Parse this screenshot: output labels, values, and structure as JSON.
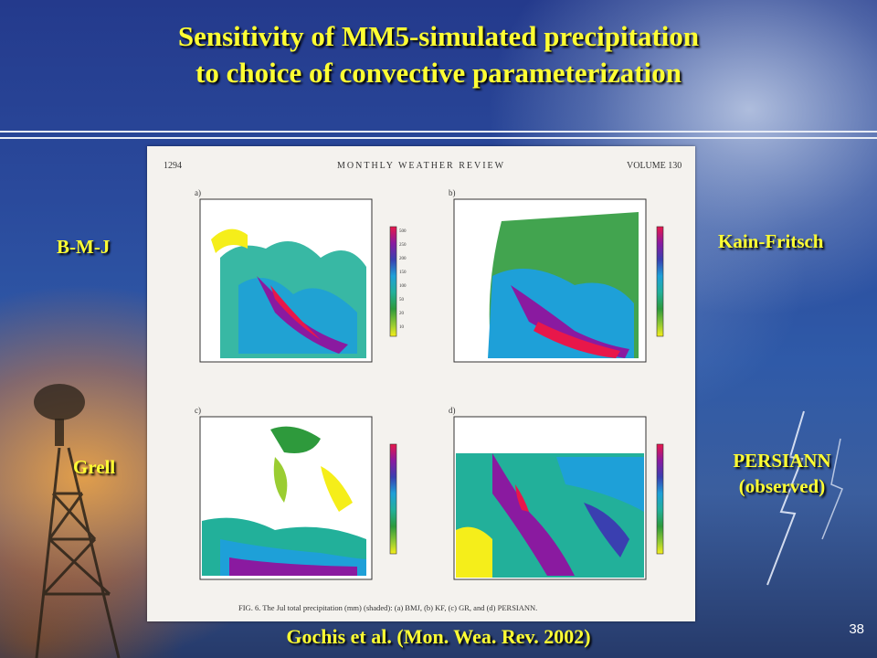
{
  "slide": {
    "title_line1": "Sensitivity of MM5-simulated precipitation",
    "title_line2": "to choice of convective parameterization",
    "labels": {
      "bmj": "B-M-J",
      "kf": "Kain-Fritsch",
      "grell": "Grell",
      "persiann_line1": "PERSIANN",
      "persiann_line2": "(observed)"
    },
    "citation": "Gochis et al. (Mon. Wea. Rev. 2002)",
    "slide_number": "38"
  },
  "figure": {
    "page_number": "1294",
    "journal": "MONTHLY WEATHER REVIEW",
    "volume": "VOLUME 130",
    "panels": [
      "a)",
      "b)",
      "c)",
      "d)"
    ],
    "legend_values": [
      "500",
      "250",
      "200",
      "150",
      "100",
      "50",
      "20",
      "10"
    ],
    "legend_colors": [
      "#e8174a",
      "#8a1aa0",
      "#3a3fb0",
      "#1ea0d8",
      "#22b09a",
      "#2e9a3c",
      "#9acd32",
      "#f5ee1a"
    ],
    "caption": "FIG. 6. The Jul total precipitation (mm) (shaded): (a) BMJ, (b) KF, (c) GR, and (d) PERSIANN."
  }
}
